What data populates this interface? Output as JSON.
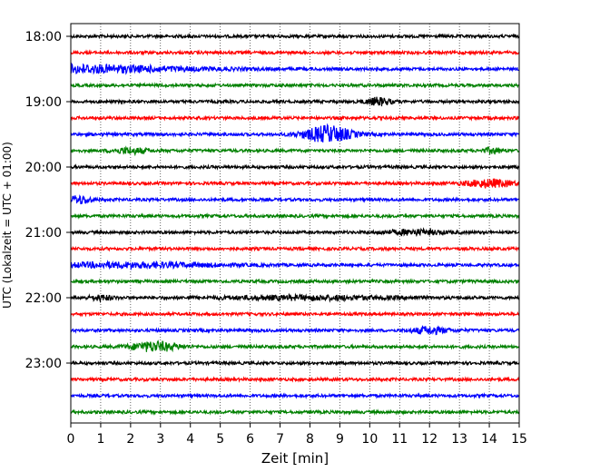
{
  "chart_data": {
    "type": "line",
    "title": "",
    "xlabel": "Zeit  [min]",
    "ylabel": "UTC (Lokalzeit = UTC + 01:00)",
    "xlim": [
      0,
      15
    ],
    "x_ticks": [
      0,
      1,
      2,
      3,
      4,
      5,
      6,
      7,
      8,
      9,
      10,
      11,
      12,
      13,
      14,
      15
    ],
    "y_tick_labels": [
      "18:00",
      "19:00",
      "20:00",
      "21:00",
      "22:00",
      "23:00"
    ],
    "grid": "vertical dotted",
    "trace_colors": [
      "#000000",
      "#ff0000",
      "#0000ff",
      "#008000"
    ],
    "traces": [
      {
        "start": "18:00",
        "color": "#000000"
      },
      {
        "start": "18:15",
        "color": "#ff0000"
      },
      {
        "start": "18:30",
        "color": "#0000ff"
      },
      {
        "start": "18:45",
        "color": "#008000"
      },
      {
        "start": "19:00",
        "color": "#000000"
      },
      {
        "start": "19:15",
        "color": "#ff0000"
      },
      {
        "start": "19:30",
        "color": "#0000ff"
      },
      {
        "start": "19:45",
        "color": "#008000"
      },
      {
        "start": "20:00",
        "color": "#000000"
      },
      {
        "start": "20:15",
        "color": "#ff0000"
      },
      {
        "start": "20:30",
        "color": "#0000ff"
      },
      {
        "start": "20:45",
        "color": "#008000"
      },
      {
        "start": "21:00",
        "color": "#000000"
      },
      {
        "start": "21:15",
        "color": "#ff0000"
      },
      {
        "start": "21:30",
        "color": "#0000ff"
      },
      {
        "start": "21:45",
        "color": "#008000"
      },
      {
        "start": "22:00",
        "color": "#000000"
      },
      {
        "start": "22:15",
        "color": "#ff0000"
      },
      {
        "start": "22:30",
        "color": "#0000ff"
      },
      {
        "start": "22:45",
        "color": "#008000"
      },
      {
        "start": "23:00",
        "color": "#000000"
      },
      {
        "start": "23:15",
        "color": "#ff0000"
      },
      {
        "start": "23:30",
        "color": "#0000ff"
      },
      {
        "start": "23:45",
        "color": "#008000"
      }
    ]
  }
}
